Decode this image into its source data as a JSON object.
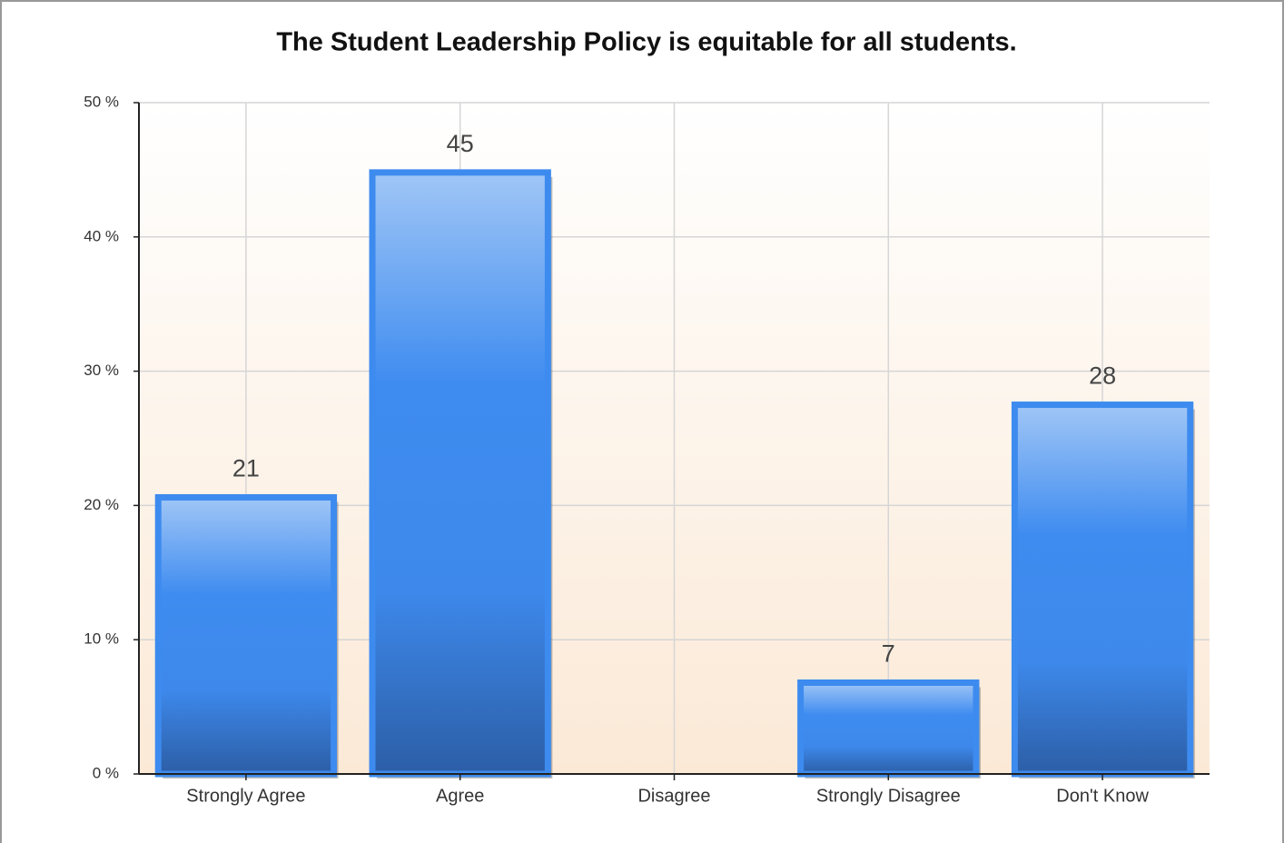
{
  "chart_data": {
    "type": "bar",
    "title": "The Student Leadership Policy is equitable for all students.",
    "categories": [
      "Strongly Agree",
      "Agree",
      "Disagree",
      "Strongly Disagree",
      "Don't Know"
    ],
    "values": [
      20.6,
      44.8,
      0,
      6.8,
      27.5
    ],
    "value_labels": [
      "21",
      "45",
      null,
      "7",
      "28"
    ],
    "color": "#3d8bef",
    "ylim": [
      0,
      50
    ],
    "yticks": [
      {
        "value": 0,
        "label": "0 %"
      },
      {
        "value": 10,
        "label": "10 %"
      },
      {
        "value": 20,
        "label": "20 %"
      },
      {
        "value": 30,
        "label": "30 %"
      },
      {
        "value": 40,
        "label": "40 %"
      },
      {
        "value": 50,
        "label": "50 %"
      }
    ],
    "grid": true
  }
}
